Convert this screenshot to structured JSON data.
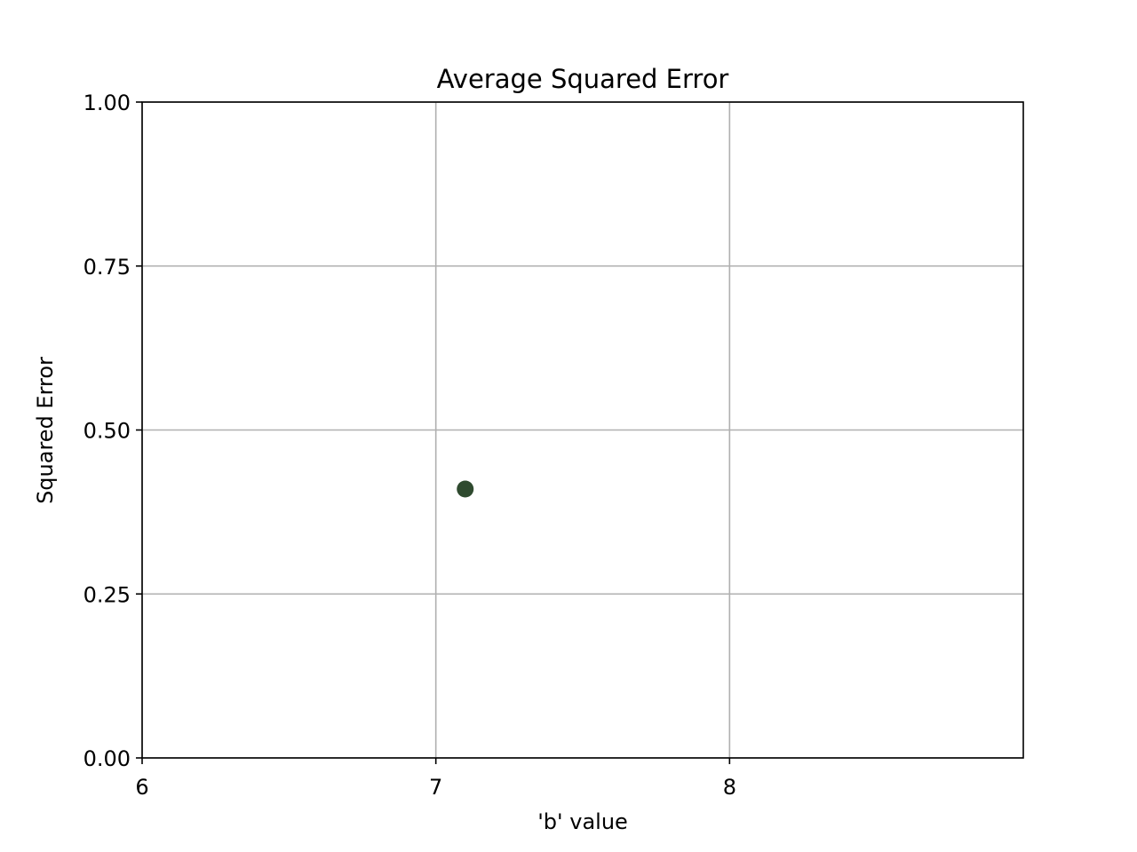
{
  "chart_data": {
    "type": "scatter",
    "title": "Average Squared Error",
    "xlabel": "'b' value",
    "ylabel": "Squared Error",
    "xlim": [
      6,
      9
    ],
    "ylim": [
      0,
      1
    ],
    "x_ticks": [
      6,
      7,
      8
    ],
    "x_tick_labels": [
      "6",
      "7",
      "8"
    ],
    "y_ticks": [
      0,
      0.25,
      0.5,
      0.75,
      1
    ],
    "y_tick_labels": [
      "0.00",
      "0.25",
      "0.50",
      "0.75",
      "1.00"
    ],
    "grid": true,
    "series": [
      {
        "color": "#2f4a2f",
        "points": [
          {
            "x": 7.1,
            "y": 0.41
          }
        ]
      }
    ]
  }
}
